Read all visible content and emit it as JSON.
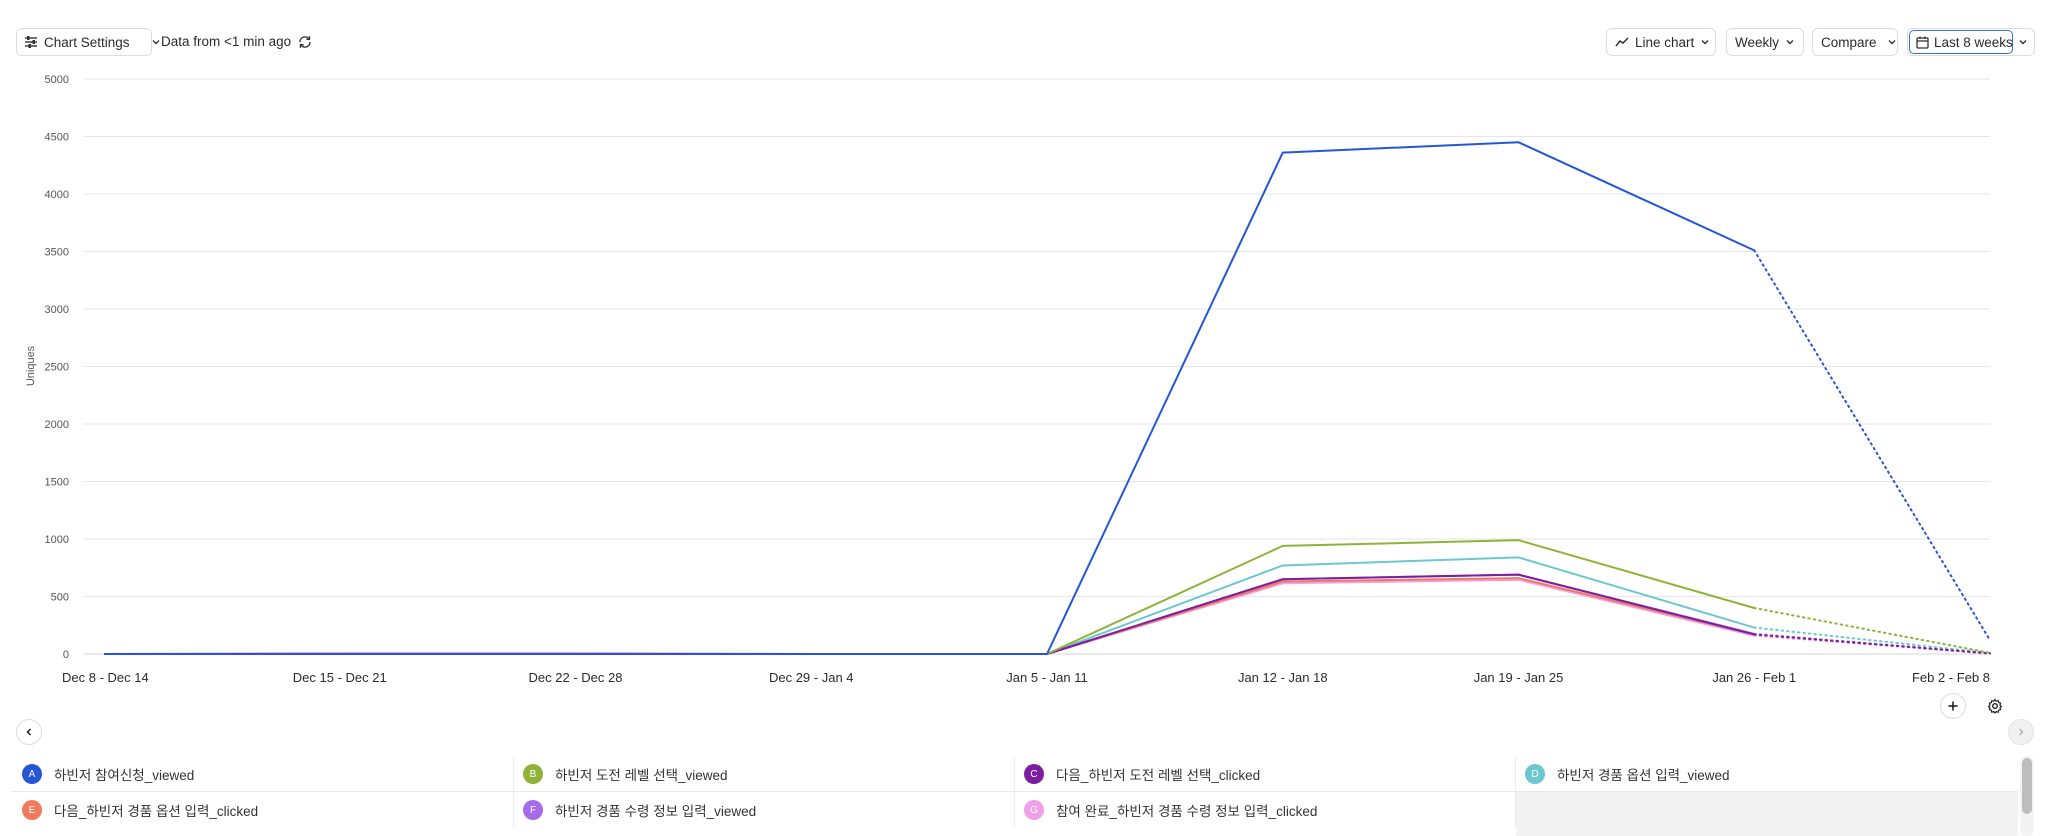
{
  "toolbar": {
    "chart_settings_label": "Chart Settings",
    "data_freshness": "Data from <1 min ago",
    "chart_type_label": "Line chart",
    "interval_label": "Weekly",
    "compare_label": "Compare",
    "date_range_label": "Last 8 weeks"
  },
  "chart_data": {
    "type": "line",
    "ylabel": "Uniques",
    "ylim": [
      0,
      5000
    ],
    "yticks": [
      0,
      500,
      1000,
      1500,
      2000,
      2500,
      3000,
      3500,
      4000,
      4500,
      5000
    ],
    "categories": [
      "Dec 8 - Dec 14",
      "Dec 15 - Dec 21",
      "Dec 22 - Dec 28",
      "Dec 29 - Jan 4",
      "Jan 5 - Jan 11",
      "Jan 12 - Jan 18",
      "Jan 19 - Jan 25",
      "Jan 26 - Feb 1",
      "Feb 2 - Feb 8"
    ],
    "incomplete_from_index": 7,
    "grid": true,
    "series": [
      {
        "name": "하빈저 참여신청_viewed",
        "letter": "A",
        "color": "#2456d6",
        "values": [
          0,
          0,
          0,
          0,
          0,
          4360,
          4450,
          3510,
          120
        ]
      },
      {
        "name": "하빈저 도전 레벨 선택_viewed",
        "letter": "B",
        "color": "#8fb339",
        "values": [
          0,
          0,
          0,
          0,
          0,
          940,
          990,
          400,
          10
        ]
      },
      {
        "name": "다음_하빈저 도전 레벨 선택_clicked",
        "letter": "C",
        "color": "#7a1fa2",
        "values": [
          0,
          0,
          0,
          0,
          0,
          650,
          690,
          170,
          5
        ]
      },
      {
        "name": "하빈저 경품 옵션 입력_viewed",
        "letter": "D",
        "color": "#6cc7cf",
        "values": [
          0,
          0,
          0,
          0,
          0,
          770,
          840,
          230,
          8
        ]
      },
      {
        "name": "다음_하빈저 경품 옵션 입력_clicked",
        "letter": "E",
        "color": "#f07a5a",
        "values": [
          0,
          0,
          0,
          0,
          0,
          630,
          660,
          170,
          4
        ]
      },
      {
        "name": "하빈저 경품 수령 정보 입력_viewed",
        "letter": "F",
        "color": "#a56be8",
        "values": [
          0,
          0,
          0,
          0,
          0,
          650,
          690,
          175,
          5
        ]
      },
      {
        "name": "참여 완료_하빈저 경품 수령 정보 입력_clicked",
        "letter": "G",
        "color": "#f0a0e8",
        "values": [
          0,
          10,
          10,
          0,
          0,
          615,
          645,
          160,
          4
        ]
      }
    ]
  }
}
